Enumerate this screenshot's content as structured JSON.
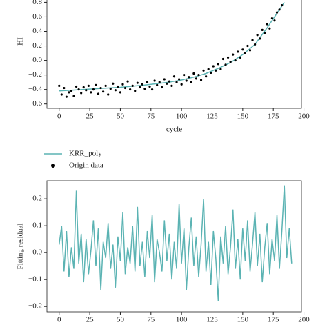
{
  "chart_data": [
    {
      "type": "scatter",
      "xlabel": "cycle",
      "ylabel": "HI",
      "xlim": [
        -10,
        198
      ],
      "ylim": [
        -0.66,
        0.88
      ],
      "xticks": [
        0,
        25,
        50,
        75,
        100,
        125,
        150,
        175,
        200
      ],
      "yticks": [
        {
          "value": -0.6,
          "label": "−0.6"
        },
        {
          "value": -0.4,
          "label": "−0.4"
        },
        {
          "value": -0.2,
          "label": "−0.2"
        },
        {
          "value": 0,
          "label": "0.0"
        },
        {
          "value": 0.2,
          "label": "0.2"
        },
        {
          "value": 0.4,
          "label": "0.4"
        },
        {
          "value": 0.6,
          "label": "0.6"
        },
        {
          "value": 0.8,
          "label": "0.8"
        }
      ],
      "legend": "below",
      "series": [
        {
          "name": "KRR_poly",
          "type": "line",
          "color": "#5bb3b3",
          "x": [
            0,
            10,
            20,
            30,
            40,
            50,
            60,
            70,
            80,
            90,
            100,
            110,
            120,
            130,
            140,
            150,
            160,
            170,
            180,
            184
          ],
          "values": [
            -0.42,
            -0.41,
            -0.4,
            -0.39,
            -0.38,
            -0.37,
            -0.355,
            -0.34,
            -0.32,
            -0.3,
            -0.27,
            -0.23,
            -0.18,
            -0.11,
            -0.03,
            0.08,
            0.22,
            0.45,
            0.7,
            0.8
          ]
        },
        {
          "name": "Origin data",
          "type": "scatter",
          "color": "#000000",
          "x": [
            0,
            2,
            4,
            6,
            8,
            10,
            12,
            14,
            16,
            18,
            20,
            22,
            24,
            26,
            28,
            30,
            32,
            34,
            36,
            38,
            40,
            42,
            44,
            46,
            48,
            50,
            52,
            54,
            56,
            58,
            60,
            62,
            64,
            66,
            68,
            70,
            72,
            74,
            76,
            78,
            80,
            82,
            84,
            86,
            88,
            90,
            92,
            94,
            96,
            98,
            100,
            102,
            104,
            106,
            108,
            110,
            112,
            114,
            116,
            118,
            120,
            122,
            124,
            126,
            128,
            130,
            132,
            134,
            136,
            138,
            140,
            142,
            144,
            146,
            148,
            150,
            152,
            154,
            156,
            158,
            160,
            162,
            164,
            166,
            168,
            170,
            172,
            174,
            176,
            178,
            180,
            182
          ],
          "values": [
            -0.35,
            -0.47,
            -0.38,
            -0.5,
            -0.44,
            -0.42,
            -0.49,
            -0.36,
            -0.4,
            -0.45,
            -0.37,
            -0.41,
            -0.35,
            -0.44,
            -0.4,
            -0.34,
            -0.46,
            -0.38,
            -0.43,
            -0.35,
            -0.47,
            -0.39,
            -0.32,
            -0.41,
            -0.36,
            -0.44,
            -0.33,
            -0.38,
            -0.29,
            -0.4,
            -0.35,
            -0.42,
            -0.31,
            -0.37,
            -0.33,
            -0.39,
            -0.3,
            -0.36,
            -0.4,
            -0.28,
            -0.34,
            -0.3,
            -0.37,
            -0.26,
            -0.32,
            -0.29,
            -0.35,
            -0.22,
            -0.3,
            -0.26,
            -0.33,
            -0.2,
            -0.28,
            -0.23,
            -0.3,
            -0.18,
            -0.25,
            -0.2,
            -0.27,
            -0.14,
            -0.22,
            -0.12,
            -0.17,
            -0.08,
            -0.14,
            -0.05,
            -0.12,
            0.02,
            -0.06,
            0.04,
            -0.02,
            0.08,
            0,
            0.12,
            0.04,
            0.15,
            0.1,
            0.2,
            0.14,
            0.28,
            0.22,
            0.35,
            0.3,
            0.42,
            0.38,
            0.5,
            0.44,
            0.58,
            0.55,
            0.66,
            0.7,
            0.76
          ]
        }
      ]
    },
    {
      "type": "line",
      "ylabel": "Fitting residual",
      "xlim": [
        -10,
        198
      ],
      "ylim": [
        -0.22,
        0.267
      ],
      "xticks": [
        0,
        25,
        50,
        75,
        100,
        125,
        150,
        175,
        200
      ],
      "yticks": [
        {
          "value": -0.2,
          "label": "−0.2"
        },
        {
          "value": -0.1,
          "label": "−0.1"
        },
        {
          "value": 0,
          "label": "0.0"
        },
        {
          "value": 0.1,
          "label": "0.1"
        },
        {
          "value": 0.2,
          "label": "0.2"
        }
      ],
      "series": [
        {
          "type": "line",
          "color": "#5bb3b3",
          "x": [
            0,
            2,
            4,
            6,
            8,
            10,
            12,
            14,
            16,
            18,
            20,
            22,
            24,
            26,
            28,
            30,
            32,
            34,
            36,
            38,
            40,
            42,
            44,
            46,
            48,
            50,
            52,
            54,
            56,
            58,
            60,
            62,
            64,
            66,
            68,
            70,
            72,
            74,
            76,
            78,
            80,
            82,
            84,
            86,
            88,
            90,
            92,
            94,
            96,
            98,
            100,
            102,
            104,
            106,
            108,
            110,
            112,
            114,
            116,
            118,
            120,
            122,
            124,
            126,
            128,
            130,
            132,
            134,
            136,
            138,
            140,
            142,
            144,
            146,
            148,
            150,
            152,
            154,
            156,
            158,
            160,
            162,
            164,
            166,
            168,
            170,
            172,
            174,
            176,
            178,
            180,
            182,
            184,
            186,
            188,
            190
          ],
          "values": [
            0.03,
            0.1,
            -0.07,
            0.08,
            -0.09,
            0.02,
            -0.06,
            0.23,
            -0.04,
            0.07,
            -0.11,
            0.05,
            -0.08,
            0.01,
            0.12,
            -0.05,
            0.09,
            -0.14,
            0.04,
            -0.02,
            0.11,
            -0.06,
            0.03,
            -0.13,
            0.06,
            -0.03,
            0.15,
            -0.08,
            0.02,
            -0.04,
            0.1,
            -0.07,
            0.17,
            -0.05,
            0.04,
            -0.09,
            0.08,
            -0.02,
            0.14,
            -0.11,
            0.05,
            0,
            -0.07,
            0.12,
            -0.03,
            0.07,
            -0.1,
            0.04,
            -0.06,
            0.18,
            -0.04,
            0.09,
            -0.14,
            0.02,
            0.13,
            -0.05,
            0.06,
            -0.09,
            0.03,
            0.2,
            -0.07,
            0.04,
            -0.12,
            0.08,
            -0.02,
            -0.18,
            0.06,
            -0.04,
            0.1,
            -0.08,
            0.02,
            0.16,
            -0.06,
            0.05,
            -0.1,
            0.09,
            -0.03,
            0.12,
            -0.07,
            0.03,
            0.15,
            -0.05,
            0.07,
            -0.11,
            0.02,
            0.11,
            -0.08,
            0.05,
            -0.03,
            0.14,
            -0.06,
            0.08,
            0.25,
            -0.02,
            0.09,
            -0.04
          ]
        }
      ]
    }
  ]
}
